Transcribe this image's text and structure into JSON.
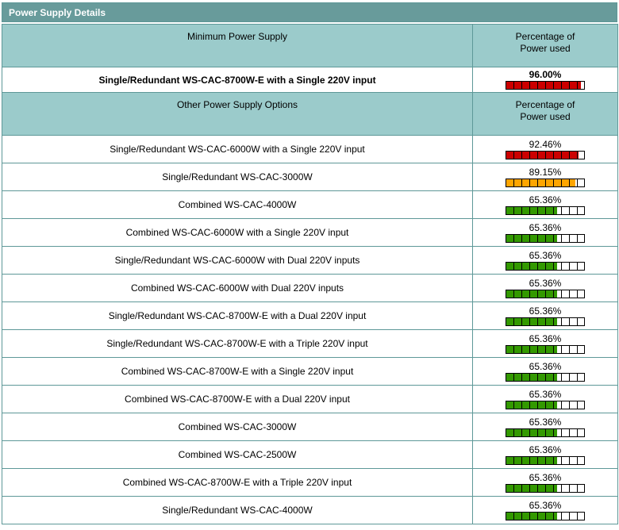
{
  "title": "Power Supply Details",
  "colors": {
    "titlebar_bg": "#689B9B",
    "header_bg": "#9BCBCB",
    "border": "#5E9898",
    "bar_border": "#000000",
    "bar_red": "#CC0000",
    "bar_orange": "#FFA500",
    "bar_green": "#339900"
  },
  "minimum_section": {
    "header": "Minimum Power Supply",
    "col2_header": "Percentage of Power used",
    "row": {
      "label": "Single/Redundant WS-CAC-8700W-E with a Single 220V input",
      "percent": "96.00%",
      "value": 96.0,
      "bar_color": "#CC0000"
    }
  },
  "other_section": {
    "header": "Other Power Supply Options",
    "col2_header": "Percentage of Power used",
    "rows": [
      {
        "label": "Single/Redundant WS-CAC-6000W with a Single 220V input",
        "percent": "92.46%",
        "value": 92.46,
        "bar_color": "#CC0000"
      },
      {
        "label": "Single/Redundant WS-CAC-3000W",
        "percent": "89.15%",
        "value": 89.15,
        "bar_color": "#FFA500"
      },
      {
        "label": "Combined WS-CAC-4000W",
        "percent": "65.36%",
        "value": 65.36,
        "bar_color": "#339900"
      },
      {
        "label": "Combined WS-CAC-6000W with a Single 220V input",
        "percent": "65.36%",
        "value": 65.36,
        "bar_color": "#339900"
      },
      {
        "label": "Single/Redundant WS-CAC-6000W with Dual 220V inputs",
        "percent": "65.36%",
        "value": 65.36,
        "bar_color": "#339900"
      },
      {
        "label": "Combined WS-CAC-6000W with Dual 220V inputs",
        "percent": "65.36%",
        "value": 65.36,
        "bar_color": "#339900"
      },
      {
        "label": "Single/Redundant WS-CAC-8700W-E with a Dual 220V input",
        "percent": "65.36%",
        "value": 65.36,
        "bar_color": "#339900"
      },
      {
        "label": "Single/Redundant WS-CAC-8700W-E with a Triple 220V input",
        "percent": "65.36%",
        "value": 65.36,
        "bar_color": "#339900"
      },
      {
        "label": "Combined WS-CAC-8700W-E with a Single 220V input",
        "percent": "65.36%",
        "value": 65.36,
        "bar_color": "#339900"
      },
      {
        "label": "Combined WS-CAC-8700W-E with a Dual 220V input",
        "percent": "65.36%",
        "value": 65.36,
        "bar_color": "#339900"
      },
      {
        "label": "Combined WS-CAC-3000W",
        "percent": "65.36%",
        "value": 65.36,
        "bar_color": "#339900"
      },
      {
        "label": "Combined WS-CAC-2500W",
        "percent": "65.36%",
        "value": 65.36,
        "bar_color": "#339900"
      },
      {
        "label": "Combined WS-CAC-8700W-E with a Triple 220V input",
        "percent": "65.36%",
        "value": 65.36,
        "bar_color": "#339900"
      },
      {
        "label": "Single/Redundant WS-CAC-4000W",
        "percent": "65.36%",
        "value": 65.36,
        "bar_color": "#339900"
      }
    ]
  }
}
